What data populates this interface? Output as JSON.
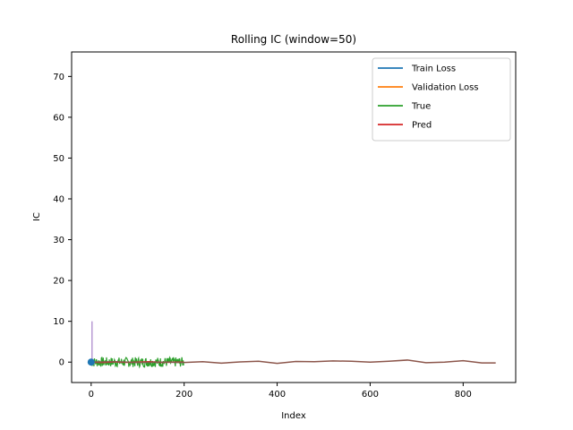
{
  "chart_data": {
    "type": "line",
    "title": "Rolling IC (window=50)",
    "xlabel": "Index",
    "ylabel": "IC",
    "xlim": [
      -42,
      913
    ],
    "ylim": [
      -5,
      76
    ],
    "xticks": [
      0,
      200,
      400,
      600,
      800
    ],
    "yticks": [
      0,
      10,
      20,
      30,
      40,
      50,
      60,
      70
    ],
    "grid": false,
    "legend_position": "top-right",
    "series": [
      {
        "name": "Train Loss",
        "color": "#1f77b4",
        "kind": "line",
        "x": [
          0,
          1,
          2,
          3
        ],
        "y": [
          0.2,
          0.0,
          -0.1,
          -0.05
        ]
      },
      {
        "name": "Validation Loss",
        "color": "#ff7f0e",
        "kind": "line",
        "x": [
          0,
          1,
          2,
          3
        ],
        "y": [
          0.1,
          0.05,
          0.0,
          0.0
        ]
      },
      {
        "name": "True",
        "color": "#2ca02c",
        "kind": "noise",
        "x_range": [
          0,
          199
        ],
        "amplitude": 1.2
      },
      {
        "name": "Pred",
        "color": "#d62728",
        "kind": "line",
        "x": [
          0,
          25,
          50,
          75,
          100,
          125,
          150,
          175,
          199
        ],
        "y": [
          0.0,
          -0.1,
          0.05,
          -0.05,
          0.0,
          0.1,
          -0.05,
          0.0,
          0.0
        ]
      },
      {
        "color": "#8c564b",
        "kind": "line",
        "x": [
          0,
          50,
          100,
          150,
          200,
          240,
          280,
          320,
          360,
          400,
          440,
          480,
          520,
          560,
          600,
          640,
          680,
          720,
          760,
          800,
          840,
          870
        ],
        "y": [
          0.0,
          0.1,
          -0.1,
          0.0,
          -0.1,
          0.1,
          -0.25,
          0.05,
          0.2,
          -0.3,
          0.15,
          0.1,
          0.3,
          0.2,
          0.0,
          0.2,
          0.5,
          -0.15,
          0.0,
          0.35,
          -0.2,
          -0.2
        ]
      },
      {
        "color": "#9467bd",
        "kind": "vline",
        "x": 2,
        "y0": 0,
        "y1": 10
      }
    ],
    "markers": [
      {
        "color": "#1f77b4",
        "x": 0,
        "y": 0
      }
    ]
  }
}
